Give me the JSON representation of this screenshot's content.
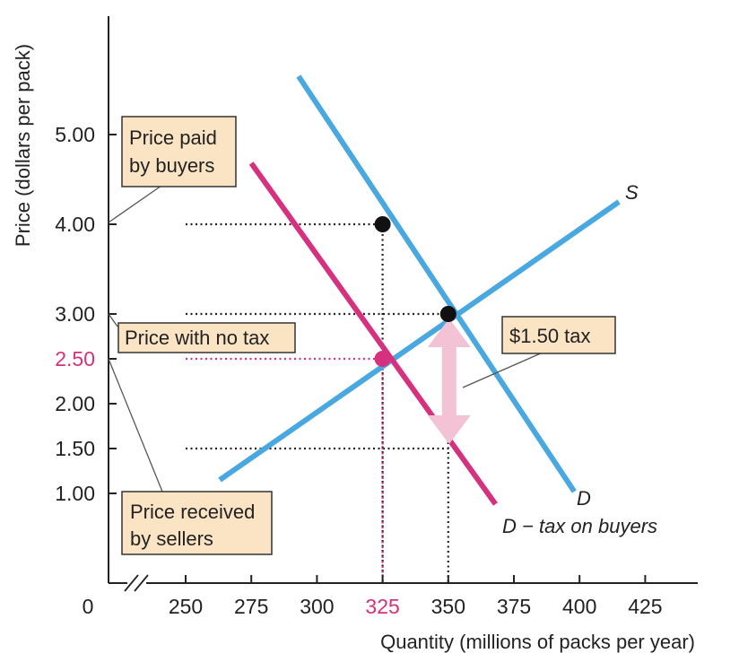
{
  "chart_data": {
    "type": "line",
    "xlabel": "Quantity (millions of packs per year)",
    "ylabel": "Price (dollars per pack)",
    "origin_label": "0",
    "x_ticks": [
      {
        "value": 250,
        "label": "250"
      },
      {
        "value": 275,
        "label": "275"
      },
      {
        "value": 300,
        "label": "300"
      },
      {
        "value": 325,
        "label": "325",
        "highlight": true
      },
      {
        "value": 350,
        "label": "350"
      },
      {
        "value": 375,
        "label": "375"
      },
      {
        "value": 400,
        "label": "400"
      },
      {
        "value": 425,
        "label": "425"
      }
    ],
    "y_ticks": [
      {
        "value": 1.0,
        "label": "1.00"
      },
      {
        "value": 1.5,
        "label": "1.50"
      },
      {
        "value": 2.0,
        "label": "2.00"
      },
      {
        "value": 2.5,
        "label": "2.50",
        "highlight": true
      },
      {
        "value": 3.0,
        "label": "3.00"
      },
      {
        "value": 4.0,
        "label": "4.00"
      },
      {
        "value": 5.0,
        "label": "5.00"
      }
    ],
    "axis_break": true,
    "series": [
      {
        "name": "S",
        "label": "S",
        "color": "#4aa8e0",
        "points": [
          [
            263,
            1.15
          ],
          [
            415,
            4.25
          ]
        ]
      },
      {
        "name": "D",
        "label": "D",
        "color": "#4aa8e0",
        "points": [
          [
            293,
            5.65
          ],
          [
            398,
            1.02
          ]
        ]
      },
      {
        "name": "D − tax on buyers",
        "label": "D − tax on buyers",
        "color": "#d6317f",
        "points": [
          [
            275,
            4.68
          ],
          [
            368,
            0.88
          ]
        ]
      }
    ],
    "points": [
      {
        "name": "equilibrium-no-tax",
        "x": 350,
        "y": 3.0,
        "color": "#111111"
      },
      {
        "name": "price-paid-by-buyers",
        "x": 325,
        "y": 4.0,
        "color": "#111111"
      },
      {
        "name": "equilibrium-with-tax",
        "x": 325,
        "y": 2.5,
        "color": "#d6317f"
      }
    ],
    "guides": [
      {
        "x1": 250,
        "y1": 4.0,
        "x2": 325,
        "y2": 4.0,
        "color": "#222222"
      },
      {
        "x1": 250,
        "y1": 3.0,
        "x2": 350,
        "y2": 3.0,
        "color": "#222222"
      },
      {
        "x1": 250,
        "y1": 2.5,
        "x2": 325,
        "y2": 2.5,
        "color": "#d6317f"
      },
      {
        "x1": 250,
        "y1": 1.5,
        "x2": 350,
        "y2": 1.5,
        "color": "#222222"
      },
      {
        "x1": 325,
        "y1": 4.0,
        "x2": 325,
        "y2": 0.0,
        "color": "#222222"
      },
      {
        "x1": 325,
        "y1": 2.5,
        "x2": 325,
        "y2": 0.0,
        "color": "#d6317f"
      },
      {
        "x1": 350,
        "y1": 3.0,
        "x2": 350,
        "y2": 0.0,
        "color": "#222222"
      }
    ],
    "tax_arrow": {
      "x": 350,
      "y_from": 2.95,
      "y_to": 1.55,
      "color": "#f3c2d4"
    },
    "annotations": [
      {
        "name": "price-paid-by-buyers",
        "lines": [
          "Price paid",
          "by buyers"
        ]
      },
      {
        "name": "price-with-no-tax",
        "lines": [
          "Price with no tax"
        ]
      },
      {
        "name": "tax-amount",
        "lines": [
          "$1.50 tax"
        ]
      },
      {
        "name": "price-received-by-sellers",
        "lines": [
          "Price received",
          "by sellers"
        ]
      }
    ],
    "colors": {
      "axis": "#222222",
      "callout_fill": "#fbe4c4",
      "highlight": "#d6317f"
    }
  }
}
